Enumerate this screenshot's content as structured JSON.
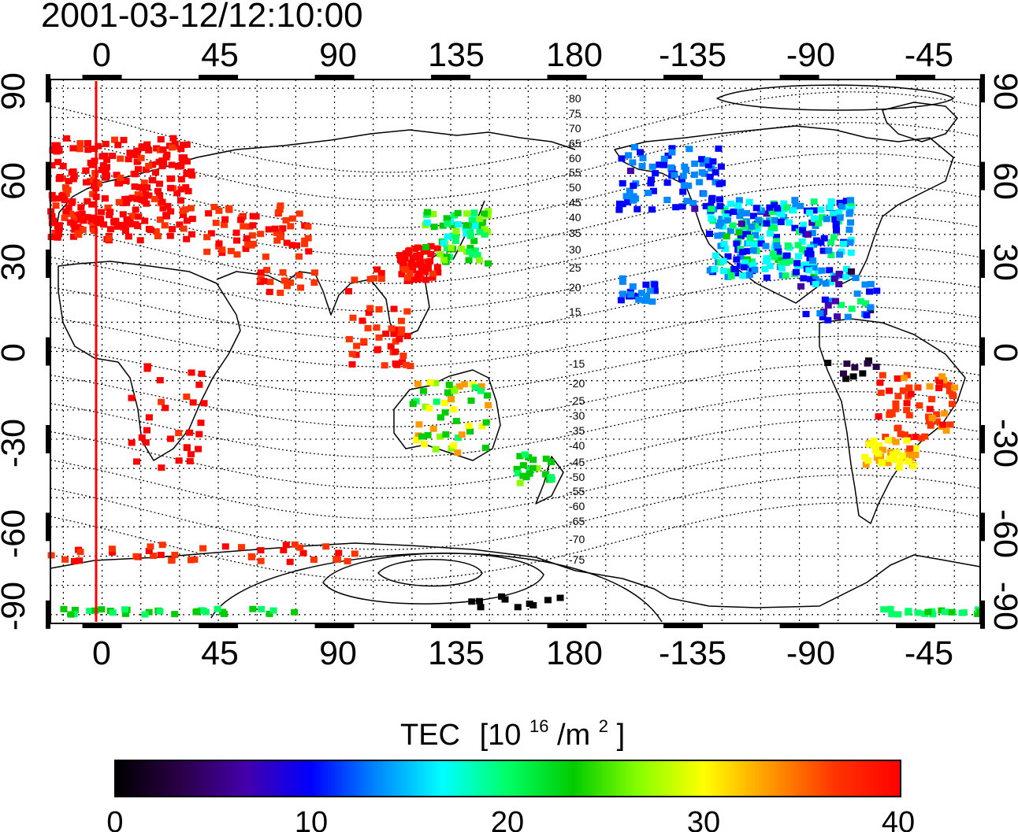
{
  "timestamp": "2001-03-12/12:10:00",
  "map": {
    "lon_ticks_top": [
      "0",
      "45",
      "90",
      "135",
      "180",
      "-135",
      "-90",
      "-45"
    ],
    "lon_ticks_bottom": [
      "0",
      "45",
      "90",
      "135",
      "180",
      "-135",
      "-90",
      "-45"
    ],
    "lat_ticks_left": [
      "90",
      "60",
      "30",
      "0",
      "-30",
      "-60",
      "-90"
    ],
    "lat_ticks_right": [
      "90",
      "60",
      "30",
      "0",
      "-30",
      "-60",
      "-90"
    ],
    "lon_range_deg": [
      -20,
      340
    ],
    "lat_range_deg": [
      -93,
      93
    ],
    "lon_grid_step_deg": 15,
    "lat_grid_step_deg": 10,
    "magnetic_latitude_contours": [
      "80",
      "75",
      "70",
      "65",
      "60",
      "55",
      "50",
      "45",
      "40",
      "35",
      "30",
      "25",
      "20",
      "15",
      "-15",
      "-20",
      "-25",
      "-30",
      "-35",
      "-40",
      "-45",
      "-50",
      "-55",
      "-60",
      "-65",
      "-70",
      "-75"
    ],
    "meridian_line_lon_deg": -2,
    "meridian_line_color": "#ff0000"
  },
  "colorbar": {
    "title": "TEC",
    "unit_main": "[10",
    "unit_sup": "16",
    "unit_mid": "/m",
    "unit_sup2": "2",
    "unit_end": "]",
    "ticks": [
      "0",
      "10",
      "20",
      "30",
      "40"
    ],
    "range": [
      0,
      40
    ],
    "colors": [
      "#000000",
      "#2a0046",
      "#4400aa",
      "#0000ff",
      "#0088ff",
      "#00ffff",
      "#00ff66",
      "#00cc00",
      "#88ff00",
      "#ffff00",
      "#ff9900",
      "#ff3300",
      "#ff0000"
    ]
  }
}
